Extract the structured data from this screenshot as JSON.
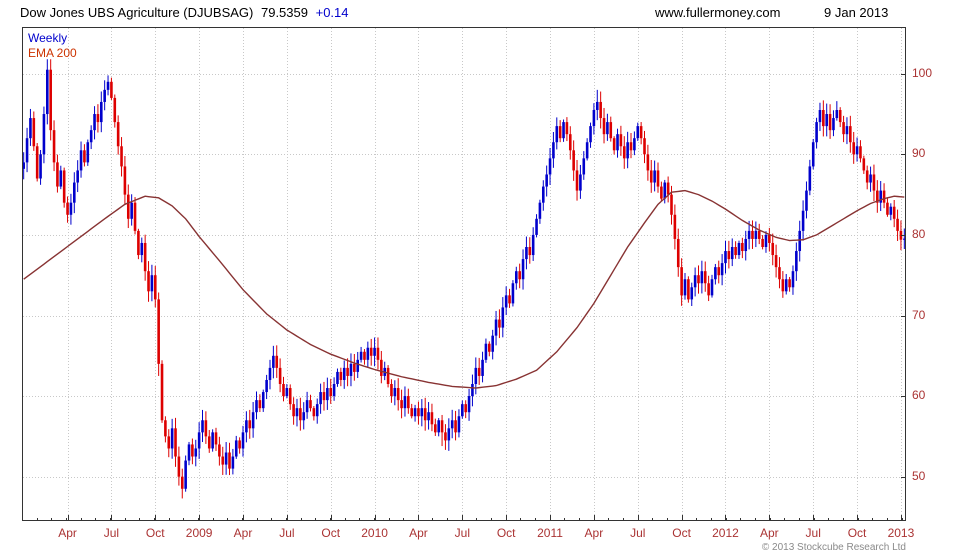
{
  "header": {
    "title": "Dow Jones UBS Agriculture (DJUBSAG)",
    "last_price": "79.5359",
    "change": "+0.14",
    "site": "www.fullermoney.com",
    "date": "9 Jan 2013"
  },
  "legend": {
    "timeframe": "Weekly",
    "overlay": "EMA 200"
  },
  "footer": {
    "copyright": "© 2013 Stockcube Research Ltd"
  },
  "chart_data": {
    "type": "candlestick",
    "title": "Dow Jones UBS Agriculture (DJUBSAG)",
    "timeframe": "Weekly",
    "last_price": 79.5359,
    "change": 0.14,
    "overlay": "EMA 200",
    "ylim": [
      44.5,
      105.8
    ],
    "y_ticks": [
      50,
      60,
      70,
      80,
      90,
      100
    ],
    "x_ticks": [
      {
        "week": 13,
        "label": "Apr"
      },
      {
        "week": 26,
        "label": "Jul"
      },
      {
        "week": 39,
        "label": "Oct"
      },
      {
        "week": 52,
        "label": "2009"
      },
      {
        "week": 65,
        "label": "Apr"
      },
      {
        "week": 78,
        "label": "Jul"
      },
      {
        "week": 91,
        "label": "Oct"
      },
      {
        "week": 104,
        "label": "2010"
      },
      {
        "week": 117,
        "label": "Apr"
      },
      {
        "week": 130,
        "label": "Jul"
      },
      {
        "week": 143,
        "label": "Oct"
      },
      {
        "week": 156,
        "label": "2011"
      },
      {
        "week": 169,
        "label": "Apr"
      },
      {
        "week": 182,
        "label": "Jul"
      },
      {
        "week": 195,
        "label": "Oct"
      },
      {
        "week": 208,
        "label": "2012"
      },
      {
        "week": 221,
        "label": "Apr"
      },
      {
        "week": 234,
        "label": "Jul"
      },
      {
        "week": 247,
        "label": "Oct"
      },
      {
        "week": 260,
        "label": "2013"
      }
    ],
    "weeks_total": 262,
    "closes": [
      89,
      92,
      94.5,
      91,
      87,
      90,
      95,
      100.5,
      93,
      89,
      86,
      88,
      84,
      82.5,
      84,
      86.5,
      88,
      90.5,
      89,
      91.5,
      93,
      95,
      94,
      96.5,
      98,
      99,
      97,
      94,
      91,
      88.5,
      85,
      82,
      84,
      80.5,
      77.5,
      79,
      75.5,
      73,
      75,
      72,
      64,
      57,
      55,
      53.5,
      56,
      52.5,
      50,
      48.5,
      52,
      54,
      52.5,
      53.5,
      55.5,
      57,
      55,
      53.5,
      55.5,
      54,
      52.5,
      51.5,
      53,
      51,
      52.5,
      54.5,
      53.5,
      55.5,
      57,
      56,
      58,
      59.5,
      58.5,
      60.5,
      62,
      63.5,
      65,
      63.5,
      61.5,
      60,
      61,
      59,
      57.5,
      58.5,
      57,
      58,
      59.5,
      58.5,
      57.5,
      59,
      60.5,
      59.5,
      61,
      60,
      61.5,
      63,
      62,
      63.5,
      62.5,
      64,
      63,
      64.5,
      65.5,
      64.5,
      66,
      65,
      66,
      64.5,
      62.5,
      63.5,
      61.5,
      60,
      61,
      59.5,
      58.5,
      60,
      58.5,
      57.5,
      58.5,
      57.5,
      58.5,
      57,
      58,
      56.5,
      55.5,
      57,
      55.5,
      54.5,
      56,
      57,
      55.5,
      57.5,
      59,
      58,
      60,
      61.5,
      63.5,
      62.5,
      64.5,
      66.5,
      65.5,
      67.5,
      69.5,
      68.5,
      71,
      72.5,
      71.5,
      74,
      75.5,
      74.5,
      77,
      78.5,
      77.5,
      80,
      82,
      84,
      86,
      87.5,
      89.5,
      91.5,
      93.5,
      92,
      94,
      92.5,
      90.5,
      88,
      85.5,
      87.5,
      89.5,
      91.5,
      93.5,
      95.5,
      96.5,
      94.5,
      92.5,
      94,
      92,
      90.5,
      92.5,
      91,
      89.5,
      91.5,
      90.5,
      92,
      93.5,
      92,
      90,
      88,
      86.5,
      88,
      86,
      84.5,
      86.5,
      85,
      82.5,
      79.5,
      76,
      72.5,
      74.5,
      72,
      73.5,
      75,
      74,
      75.5,
      74,
      72.5,
      74.5,
      76,
      75,
      76.5,
      78,
      77,
      78.5,
      77.5,
      79,
      78,
      79.5,
      80.5,
      79.5,
      80.5,
      79.5,
      78.5,
      80,
      79,
      77.5,
      76,
      74.5,
      73,
      74.5,
      73.5,
      75.5,
      78,
      80.5,
      83,
      85.5,
      88.5,
      91.5,
      94,
      95.5,
      93.5,
      95,
      93,
      94.5,
      95.5,
      94,
      92.5,
      93.5,
      91.5,
      90,
      91,
      89.5,
      88,
      86.5,
      87.5,
      85.5,
      84,
      85.5,
      84,
      82.5,
      83.5,
      82,
      80.5,
      79.4,
      79.54
    ],
    "hl_overrides": {
      "7": {
        "h": 101.8
      },
      "25": {
        "h": 99.8
      },
      "40": {
        "l": 62.5
      },
      "47": {
        "l": 47.3
      },
      "61": {
        "l": 50.2
      },
      "124": {
        "l": 53.8
      },
      "170": {
        "h": 98.0
      },
      "195": {
        "l": 71.2
      },
      "236": {
        "h": 96.4
      },
      "241": {
        "h": 96.6
      }
    },
    "ema_points": [
      [
        0,
        74.5
      ],
      [
        8,
        77.0
      ],
      [
        16,
        79.5
      ],
      [
        24,
        82.0
      ],
      [
        30,
        83.8
      ],
      [
        36,
        84.8
      ],
      [
        40,
        84.6
      ],
      [
        44,
        83.6
      ],
      [
        48,
        82.0
      ],
      [
        52,
        79.8
      ],
      [
        58,
        76.8
      ],
      [
        65,
        73.2
      ],
      [
        72,
        70.2
      ],
      [
        78,
        68.2
      ],
      [
        85,
        66.4
      ],
      [
        91,
        65.2
      ],
      [
        98,
        64.1
      ],
      [
        104,
        63.3
      ],
      [
        112,
        62.4
      ],
      [
        120,
        61.7
      ],
      [
        127,
        61.2
      ],
      [
        134,
        61.0
      ],
      [
        140,
        61.3
      ],
      [
        146,
        62.1
      ],
      [
        152,
        63.2
      ],
      [
        158,
        65.5
      ],
      [
        164,
        68.5
      ],
      [
        169,
        71.5
      ],
      [
        174,
        75.0
      ],
      [
        179,
        78.5
      ],
      [
        184,
        81.5
      ],
      [
        188,
        83.8
      ],
      [
        192,
        85.3
      ],
      [
        196,
        85.5
      ],
      [
        200,
        85.0
      ],
      [
        204,
        84.2
      ],
      [
        208,
        83.2
      ],
      [
        213,
        81.8
      ],
      [
        218,
        80.6
      ],
      [
        223,
        79.7
      ],
      [
        227,
        79.3
      ],
      [
        231,
        79.4
      ],
      [
        235,
        80.0
      ],
      [
        239,
        81.0
      ],
      [
        243,
        82.0
      ],
      [
        247,
        83.0
      ],
      [
        251,
        83.9
      ],
      [
        255,
        84.5
      ],
      [
        258,
        84.8
      ],
      [
        261,
        84.7
      ]
    ],
    "colors": {
      "up": "#0000cc",
      "down": "#dd0000",
      "ema": "#883333",
      "label_weekly": "#0000cc",
      "label_ema": "#cc3300",
      "change": "#0000cc",
      "grid": "#c8c8c8",
      "axis_text": "#aa3333",
      "frame": "#333333"
    }
  }
}
